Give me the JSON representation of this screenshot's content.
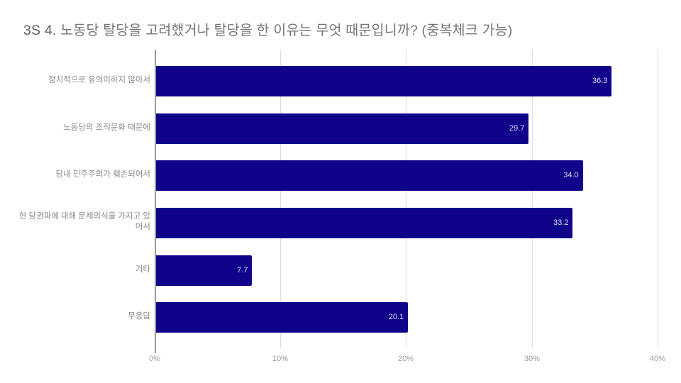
{
  "title": {
    "prefix": "3S 4.",
    "text": "노동당 탈당을 고려했거나 탈당을 한 이유는 무엇 때문입니까? (중복체크 가능)"
  },
  "colors": {
    "bar": "#0f0389",
    "bar_label": "#dcdcf0",
    "grid": "#dcdcdc",
    "text": "#8a8a8a"
  },
  "chart_data": {
    "type": "bar",
    "orientation": "horizontal",
    "title": "3S 4. 노동당 탈당을 고려했거나 탈당을 한 이유는 무엇 때문입니까? (중복체크 가능)",
    "categories": [
      "정치적으로 유의미하지 않아서",
      "노동당의 조직문화 때문에",
      "당내 민주주의가 훼손되어서",
      "현 당권파에 대해 문제의식을 가지고 있어서",
      "기타",
      "무응답"
    ],
    "values": [
      36.3,
      29.7,
      34.0,
      33.2,
      7.7,
      20.1
    ],
    "value_labels": [
      "36.3",
      "29.7",
      "34.0",
      "33.2",
      "7.7",
      "20.1"
    ],
    "xlabel": "",
    "ylabel": "",
    "xlim": [
      0,
      40
    ],
    "x_ticks": [
      "0%",
      "10%",
      "20%",
      "30%",
      "40%"
    ],
    "grid": true,
    "legend": "none"
  }
}
